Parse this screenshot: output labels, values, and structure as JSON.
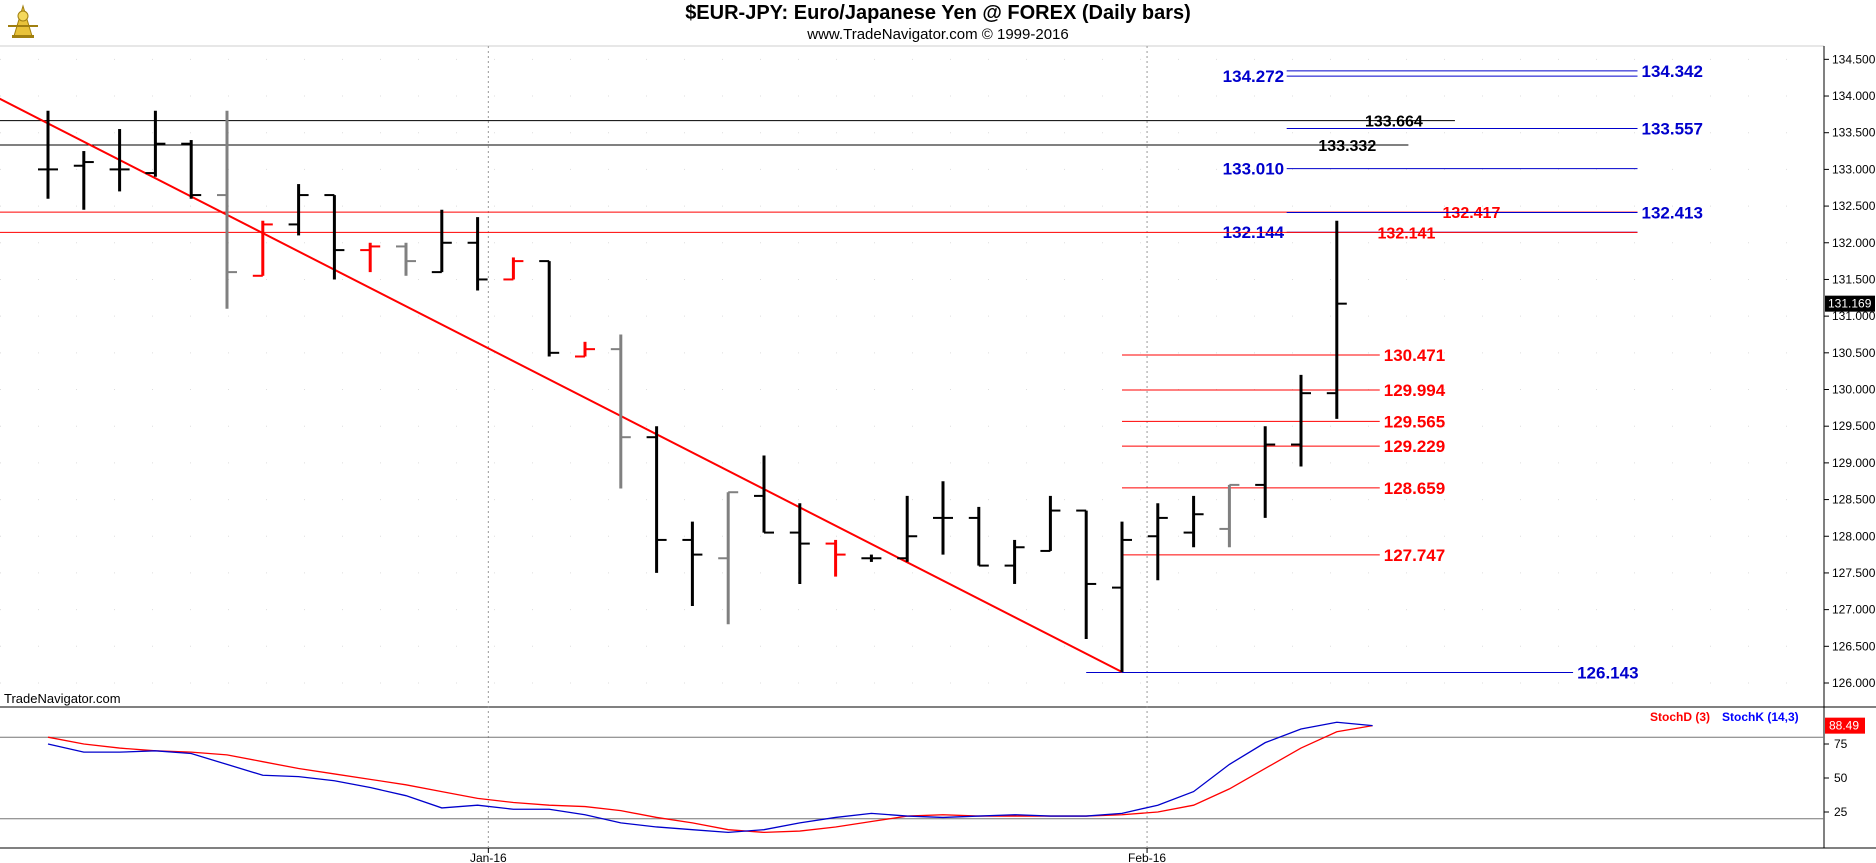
{
  "header": {
    "title": "$EUR-JPY:  Euro/Japanese Yen @ FOREX  (Daily bars)",
    "subtitle": "www.TradeNavigator.com © 1999-2016",
    "watermark": "TradeNavigator.com"
  },
  "colors": {
    "bar": "#000000",
    "bar_gray": "#808080",
    "bar_red": "#ff0000",
    "trendline": "#ff0000",
    "fib_red": "#ff0000",
    "fib_blue": "#0000cc",
    "stoch_d": "#ff0000",
    "stoch_k": "#0000ff",
    "grid_dot": "#999999"
  },
  "chart_data": [
    {
      "type": "ohlc",
      "yrange": [
        125.85,
        134.6
      ],
      "y_ticks": [
        "134.500",
        "134.000",
        "133.500",
        "133.000",
        "132.500",
        "132.000",
        "131.500",
        "131.000",
        "130.500",
        "130.000",
        "129.500",
        "129.000",
        "128.500",
        "128.000",
        "127.500",
        "127.000",
        "126.500",
        "126.000"
      ],
      "x_labels": [
        "Jan-16",
        "Feb-16"
      ],
      "last_price_label": "131.169",
      "bars": [
        {
          "o": 133.0,
          "h": 133.8,
          "l": 132.6,
          "c": 133.0,
          "color": "black"
        },
        {
          "o": 133.05,
          "h": 133.25,
          "l": 132.45,
          "c": 133.1,
          "color": "black"
        },
        {
          "o": 133.0,
          "h": 133.55,
          "l": 132.7,
          "c": 133.0,
          "color": "black"
        },
        {
          "o": 132.95,
          "h": 133.8,
          "l": 132.9,
          "c": 133.35,
          "color": "black"
        },
        {
          "o": 133.35,
          "h": 133.4,
          "l": 132.6,
          "c": 132.65,
          "color": "black"
        },
        {
          "o": 132.65,
          "h": 133.8,
          "l": 131.1,
          "c": 131.6,
          "color": "gray"
        },
        {
          "o": 131.55,
          "h": 132.3,
          "l": 131.55,
          "c": 132.25,
          "color": "red"
        },
        {
          "o": 132.25,
          "h": 132.8,
          "l": 132.1,
          "c": 132.65,
          "color": "black"
        },
        {
          "o": 132.65,
          "h": 132.65,
          "l": 131.5,
          "c": 131.9,
          "color": "black"
        },
        {
          "o": 131.9,
          "h": 132.0,
          "l": 131.6,
          "c": 131.95,
          "color": "red"
        },
        {
          "o": 131.95,
          "h": 132.0,
          "l": 131.55,
          "c": 131.75,
          "color": "gray"
        },
        {
          "o": 131.6,
          "h": 132.45,
          "l": 131.6,
          "c": 132.0,
          "color": "black"
        },
        {
          "o": 132.0,
          "h": 132.35,
          "l": 131.35,
          "c": 131.5,
          "color": "black"
        },
        {
          "o": 131.5,
          "h": 131.8,
          "l": 131.5,
          "c": 131.75,
          "color": "red"
        },
        {
          "o": 131.75,
          "h": 131.75,
          "l": 130.45,
          "c": 130.5,
          "color": "black"
        },
        {
          "o": 130.45,
          "h": 130.65,
          "l": 130.45,
          "c": 130.55,
          "color": "red"
        },
        {
          "o": 130.55,
          "h": 130.75,
          "l": 128.65,
          "c": 129.35,
          "color": "gray"
        },
        {
          "o": 129.35,
          "h": 129.5,
          "l": 127.5,
          "c": 127.95,
          "color": "black"
        },
        {
          "o": 127.95,
          "h": 128.2,
          "l": 127.05,
          "c": 127.75,
          "color": "black"
        },
        {
          "o": 127.7,
          "h": 128.6,
          "l": 126.8,
          "c": 128.6,
          "color": "gray"
        },
        {
          "o": 128.55,
          "h": 129.1,
          "l": 128.05,
          "c": 128.05,
          "color": "black"
        },
        {
          "o": 128.05,
          "h": 128.45,
          "l": 127.35,
          "c": 127.9,
          "color": "black"
        },
        {
          "o": 127.9,
          "h": 127.95,
          "l": 127.45,
          "c": 127.75,
          "color": "red"
        },
        {
          "o": 127.7,
          "h": 127.75,
          "l": 127.65,
          "c": 127.7,
          "color": "black"
        },
        {
          "o": 127.7,
          "h": 128.55,
          "l": 127.65,
          "c": 128.0,
          "color": "black"
        },
        {
          "o": 128.25,
          "h": 128.75,
          "l": 127.75,
          "c": 128.25,
          "color": "black"
        },
        {
          "o": 128.25,
          "h": 128.4,
          "l": 127.6,
          "c": 127.6,
          "color": "black"
        },
        {
          "o": 127.6,
          "h": 127.95,
          "l": 127.35,
          "c": 127.85,
          "color": "black"
        },
        {
          "o": 127.8,
          "h": 128.55,
          "l": 127.8,
          "c": 128.35,
          "color": "black"
        },
        {
          "o": 128.35,
          "h": 128.35,
          "l": 126.6,
          "c": 127.35,
          "color": "black"
        },
        {
          "o": 127.3,
          "h": 128.2,
          "l": 126.15,
          "c": 127.95,
          "color": "black"
        },
        {
          "o": 128.0,
          "h": 128.45,
          "l": 127.4,
          "c": 128.25,
          "color": "black"
        },
        {
          "o": 128.05,
          "h": 128.55,
          "l": 127.85,
          "c": 128.3,
          "color": "black"
        },
        {
          "o": 128.1,
          "h": 128.7,
          "l": 127.85,
          "c": 128.7,
          "color": "gray"
        },
        {
          "o": 128.7,
          "h": 129.5,
          "l": 128.25,
          "c": 129.25,
          "color": "black"
        },
        {
          "o": 129.25,
          "h": 130.2,
          "l": 128.95,
          "c": 129.95,
          "color": "black"
        },
        {
          "o": 129.95,
          "h": 132.3,
          "l": 129.6,
          "c": 131.17,
          "color": "black"
        }
      ],
      "trendline": {
        "from": {
          "bar": -1.5,
          "price": 134.0
        },
        "to": {
          "bar": 30,
          "price": 126.15
        }
      },
      "levels": [
        {
          "price": 134.272,
          "label": "134.272",
          "color": "blue",
          "from_bar": 34.6,
          "to_bar": 44.4,
          "label_side": "left"
        },
        {
          "price": 134.342,
          "label": "134.342",
          "color": "blue",
          "from_bar": 34.6,
          "to_bar": 44.4,
          "label_side": "right"
        },
        {
          "price": 133.664,
          "label": "133.664",
          "color": "black",
          "from_bar": -2,
          "to_bar": 39.3,
          "label_side": "right"
        },
        {
          "price": 133.557,
          "label": "133.557",
          "color": "blue",
          "from_bar": 34.6,
          "to_bar": 44.4,
          "label_side": "right"
        },
        {
          "price": 133.332,
          "label": "133.332",
          "color": "black",
          "from_bar": -2,
          "to_bar": 38.0,
          "label_side": "right"
        },
        {
          "price": 133.01,
          "label": "133.010",
          "color": "blue",
          "from_bar": 34.6,
          "to_bar": 44.4,
          "label_side": "left"
        },
        {
          "price": 132.417,
          "label": "132.417",
          "color": "red",
          "from_bar": -2,
          "to_bar": 44.4,
          "label_side": "rightin"
        },
        {
          "price": 132.413,
          "label": "132.413",
          "color": "blue",
          "from_bar": 34.6,
          "to_bar": 44.4,
          "label_side": "right"
        },
        {
          "price": 132.144,
          "label": "132.144",
          "color": "blue",
          "from_bar": 34.6,
          "to_bar": 44.4,
          "label_side": "left"
        },
        {
          "price": 132.141,
          "label": "132.141",
          "color": "red",
          "from_bar": -2,
          "to_bar": 44.4,
          "label_side": "rightin"
        },
        {
          "price": 130.471,
          "label": "130.471",
          "color": "red",
          "from_bar": 30,
          "to_bar": 37.2,
          "label_side": "right"
        },
        {
          "price": 129.994,
          "label": "129.994",
          "color": "red",
          "from_bar": 30,
          "to_bar": 37.2,
          "label_side": "right"
        },
        {
          "price": 129.565,
          "label": "129.565",
          "color": "red",
          "from_bar": 30,
          "to_bar": 37.2,
          "label_side": "right"
        },
        {
          "price": 129.229,
          "label": "129.229",
          "color": "red",
          "from_bar": 30,
          "to_bar": 37.2,
          "label_side": "right"
        },
        {
          "price": 128.659,
          "label": "128.659",
          "color": "red",
          "from_bar": 30,
          "to_bar": 37.2,
          "label_side": "right"
        },
        {
          "price": 127.747,
          "label": "127.747",
          "color": "red",
          "from_bar": 30,
          "to_bar": 37.2,
          "label_side": "right"
        },
        {
          "price": 126.143,
          "label": "126.143",
          "color": "blue",
          "from_bar": 29,
          "to_bar": 42.6,
          "label_side": "right"
        }
      ]
    },
    {
      "type": "line",
      "yrange": [
        0,
        100
      ],
      "y_ticks": [
        "75",
        "50",
        "25"
      ],
      "reference_lines": [
        80,
        20
      ],
      "legend": [
        "StochD (3)",
        "StochK (14,3)"
      ],
      "last_value_label": "88.49",
      "series": [
        {
          "name": "StochD (3)",
          "color": "red",
          "values": [
            80,
            75,
            72,
            70,
            69,
            67,
            62,
            57,
            53,
            49,
            45,
            40,
            35,
            32,
            30,
            29,
            26,
            21,
            17,
            12,
            10,
            11,
            14,
            18,
            22,
            23,
            22,
            22,
            22,
            22,
            23,
            25,
            30,
            42,
            57,
            72,
            84,
            88.49
          ]
        },
        {
          "name": "StochK (14,3)",
          "color": "blue",
          "values": [
            75,
            69,
            69,
            70,
            68,
            60,
            52,
            51,
            48,
            43,
            37,
            28,
            30,
            27,
            27,
            23,
            17,
            14,
            12,
            10,
            12,
            17,
            21,
            24,
            22,
            21,
            22,
            23,
            22,
            22,
            24,
            30,
            40,
            60,
            76,
            86,
            91,
            88.49
          ]
        }
      ]
    }
  ]
}
